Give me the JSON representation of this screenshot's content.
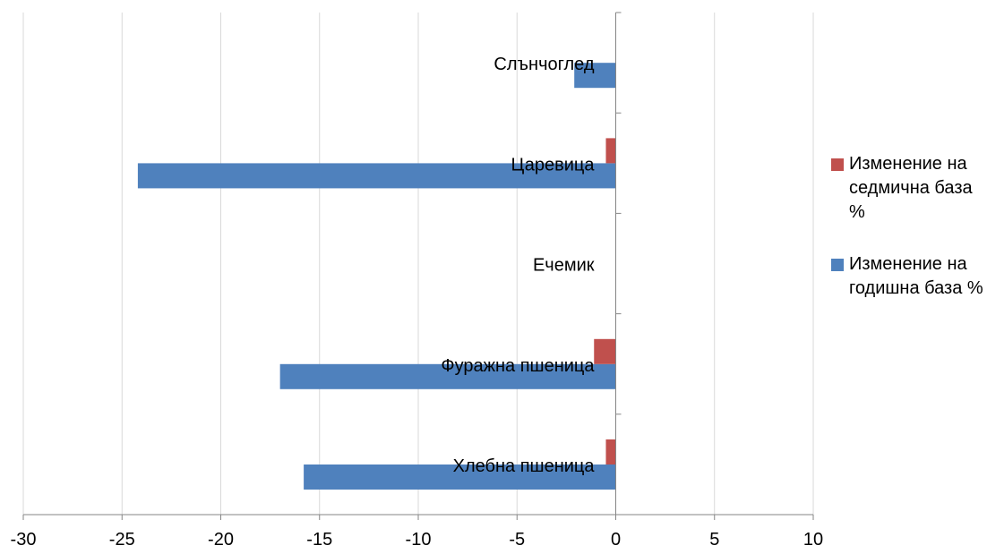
{
  "chart_data": {
    "type": "bar",
    "orientation": "horizontal",
    "categories": [
      "Хлебна пшеница",
      "Фуражна пшеница",
      "Ечемик",
      "Царевица",
      "Слънчоглед"
    ],
    "series": [
      {
        "name": "Изменение на годишна база %",
        "color": "#4F81BD",
        "values": [
          -15.8,
          -17.0,
          0,
          -24.2,
          -2.1
        ]
      },
      {
        "name": "Изменение на седмична база %",
        "color": "#C0504D",
        "values": [
          -0.5,
          -1.1,
          0,
          -0.5,
          0
        ]
      }
    ],
    "xlim": [
      -30,
      10
    ],
    "xticks": [
      -30,
      -25,
      -20,
      -15,
      -10,
      -5,
      0,
      5,
      10
    ],
    "grid": "vertical",
    "legend_position": "right"
  }
}
